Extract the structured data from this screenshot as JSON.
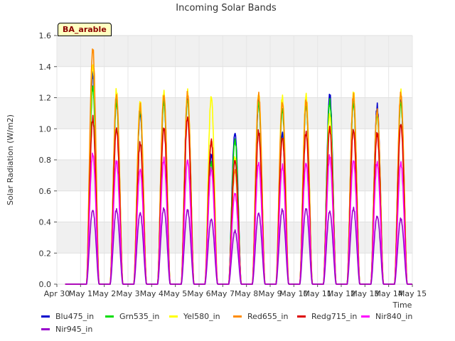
{
  "chart_data": {
    "type": "line",
    "title": "Incoming Solar Bands",
    "xlabel": "Time",
    "ylabel": "Solar Radiation (W/m2)",
    "annotation": "BA_arable",
    "ylim": [
      0,
      1.6
    ],
    "yticks": [
      "0.0",
      "0.2",
      "0.4",
      "0.6",
      "0.8",
      "1.0",
      "1.2",
      "1.4",
      "1.6"
    ],
    "xticks": [
      "Apr 30",
      "May 1",
      "May 2",
      "May 3",
      "May 4",
      "May 5",
      "May 6",
      "May 7",
      "May 8",
      "May 9",
      "May 10",
      "May 11",
      "May 12",
      "May 13",
      "May 14",
      "May 15"
    ],
    "grid": "horizontal bands",
    "legend_position": "bottom",
    "days": [
      "May 1",
      "May 2",
      "May 3",
      "May 4",
      "May 5",
      "May 6",
      "May 7",
      "May 8",
      "May 9",
      "May 10",
      "May 11",
      "May 12",
      "May 13",
      "May 14"
    ],
    "series": [
      {
        "name": "Blu475_in",
        "color": "#0000cc",
        "daily_peaks": [
          1.38,
          1.22,
          1.13,
          1.23,
          1.24,
          0.85,
          1.0,
          1.2,
          1.0,
          1.2,
          1.25,
          1.23,
          1.17,
          1.22
        ]
      },
      {
        "name": "Grn535_in",
        "color": "#00dd00",
        "daily_peaks": [
          1.3,
          1.2,
          1.15,
          1.2,
          1.22,
          0.8,
          0.95,
          1.2,
          1.15,
          1.18,
          1.2,
          1.2,
          1.12,
          1.2
        ]
      },
      {
        "name": "Yel580_in",
        "color": "#ffff00",
        "daily_peaks": [
          1.45,
          1.27,
          1.21,
          1.27,
          1.27,
          1.24,
          0.83,
          1.26,
          1.23,
          1.25,
          1.12,
          1.26,
          1.14,
          1.26
        ]
      },
      {
        "name": "Red655_in",
        "color": "#ff8c00",
        "daily_peaks": [
          1.55,
          1.25,
          1.17,
          1.25,
          1.25,
          0.95,
          0.75,
          1.25,
          1.2,
          1.2,
          1.05,
          1.24,
          1.15,
          1.26
        ]
      },
      {
        "name": "Redg715_in",
        "color": "#dd0000",
        "daily_peaks": [
          1.09,
          1.03,
          0.93,
          1.03,
          1.1,
          0.94,
          0.82,
          1.0,
          0.97,
          1.0,
          1.03,
          1.02,
          0.99,
          1.06
        ]
      },
      {
        "name": "Nir840_in",
        "color": "#ff00ff",
        "daily_peaks": [
          0.86,
          0.81,
          0.76,
          0.82,
          0.82,
          0.76,
          0.6,
          0.8,
          0.78,
          0.8,
          0.84,
          0.82,
          0.8,
          0.8
        ]
      },
      {
        "name": "Nir945_in",
        "color": "#9900cc",
        "daily_peaks": [
          0.49,
          0.49,
          0.47,
          0.5,
          0.49,
          0.43,
          0.35,
          0.47,
          0.49,
          0.5,
          0.48,
          0.5,
          0.45,
          0.43
        ]
      }
    ]
  }
}
